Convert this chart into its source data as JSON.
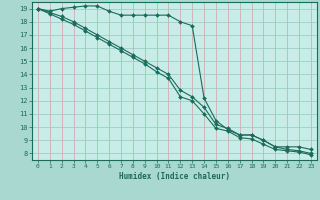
{
  "xlabel": "Humidex (Indice chaleur)",
  "outer_bg": "#a8d8d0",
  "plot_bg": "#c8ece8",
  "grid_color": "#98c8c0",
  "line_color": "#1a6b5a",
  "xlim": [
    -0.5,
    23.5
  ],
  "ylim": [
    7.5,
    19.5
  ],
  "xticks": [
    0,
    1,
    2,
    3,
    4,
    5,
    6,
    7,
    8,
    9,
    10,
    11,
    12,
    13,
    14,
    15,
    16,
    17,
    18,
    19,
    20,
    21,
    22,
    23
  ],
  "yticks": [
    8,
    9,
    10,
    11,
    12,
    13,
    14,
    15,
    16,
    17,
    18,
    19
  ],
  "line1_x": [
    0,
    1,
    2,
    3,
    4,
    5,
    6,
    7,
    8,
    9,
    10,
    11,
    12,
    13,
    14,
    15,
    16,
    17,
    18,
    19,
    20,
    21,
    22,
    23
  ],
  "line1_y": [
    19,
    18.8,
    19.0,
    19.1,
    19.2,
    19.2,
    18.8,
    18.5,
    18.5,
    18.5,
    18.5,
    18.5,
    18.0,
    17.7,
    12.2,
    10.5,
    9.8,
    9.4,
    9.4,
    9.0,
    8.5,
    8.5,
    8.5,
    8.3
  ],
  "line2_x": [
    0,
    1,
    2,
    3,
    4,
    5,
    6,
    7,
    8,
    9,
    10,
    11,
    12,
    13,
    14,
    15,
    16,
    17,
    18,
    19,
    20,
    21,
    22,
    23
  ],
  "line2_y": [
    19,
    18.7,
    18.4,
    18.0,
    17.5,
    17.0,
    16.5,
    16.0,
    15.5,
    15.0,
    14.5,
    14.0,
    12.8,
    12.3,
    11.5,
    10.2,
    9.9,
    9.4,
    9.4,
    9.0,
    8.5,
    8.3,
    8.2,
    8.0
  ],
  "line3_x": [
    0,
    1,
    2,
    3,
    4,
    5,
    6,
    7,
    8,
    9,
    10,
    11,
    12,
    13,
    14,
    15,
    16,
    17,
    18,
    19,
    20,
    21,
    22,
    23
  ],
  "line3_y": [
    19,
    18.6,
    18.2,
    17.8,
    17.3,
    16.8,
    16.3,
    15.8,
    15.3,
    14.8,
    14.2,
    13.7,
    12.3,
    12.0,
    11.0,
    9.9,
    9.7,
    9.2,
    9.1,
    8.7,
    8.3,
    8.2,
    8.1,
    7.9
  ]
}
